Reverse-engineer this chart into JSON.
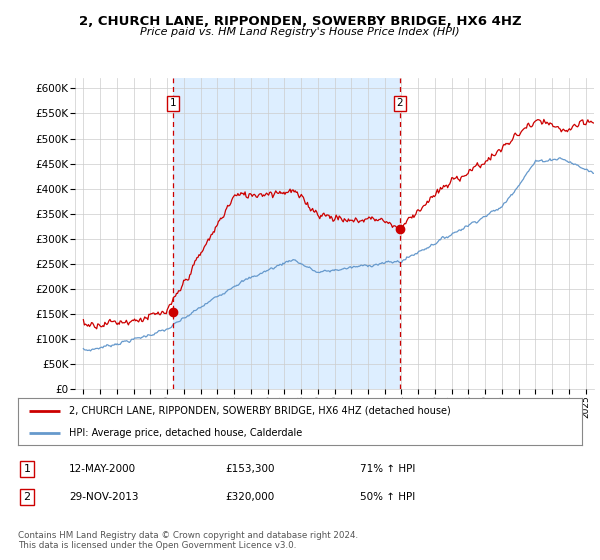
{
  "title": "2, CHURCH LANE, RIPPONDEN, SOWERBY BRIDGE, HX6 4HZ",
  "subtitle": "Price paid vs. HM Land Registry's House Price Index (HPI)",
  "legend_line1": "2, CHURCH LANE, RIPPONDEN, SOWERBY BRIDGE, HX6 4HZ (detached house)",
  "legend_line2": "HPI: Average price, detached house, Calderdale",
  "sale1_date": "12-MAY-2000",
  "sale1_price": "£153,300",
  "sale1_hpi": "71% ↑ HPI",
  "sale2_date": "29-NOV-2013",
  "sale2_price": "£320,000",
  "sale2_hpi": "50% ↑ HPI",
  "footnote": "Contains HM Land Registry data © Crown copyright and database right 2024.\nThis data is licensed under the Open Government Licence v3.0.",
  "line_color_red": "#cc0000",
  "line_color_blue": "#6699cc",
  "vline_color": "#cc0000",
  "shade_color": "#ddeeff",
  "ylim": [
    0,
    620000
  ],
  "yticks": [
    0,
    50000,
    100000,
    150000,
    200000,
    250000,
    300000,
    350000,
    400000,
    450000,
    500000,
    550000,
    600000
  ],
  "sale1_x": 2000.37,
  "sale1_y": 153300,
  "sale2_x": 2013.91,
  "sale2_y": 320000,
  "xlim_left": 1994.5,
  "xlim_right": 2025.5,
  "background_color": "#ffffff",
  "grid_color": "#cccccc"
}
